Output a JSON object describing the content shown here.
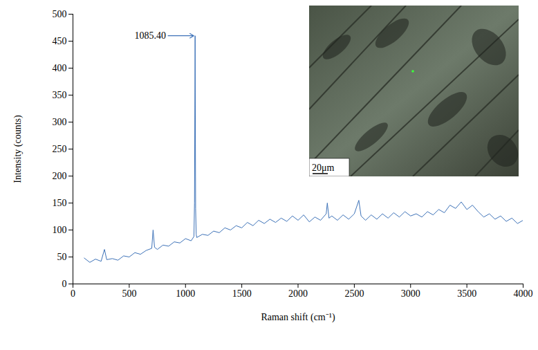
{
  "chart_data": {
    "type": "line",
    "x_label": "Raman shift (cm⁻¹)",
    "y_label": "Intensity (counts)",
    "color": "#3d72b8",
    "grid": false,
    "xlim": [
      0,
      4000
    ],
    "xticks": [
      0,
      500,
      1000,
      1500,
      2000,
      2500,
      3000,
      3500,
      4000
    ],
    "ylim": [
      0,
      500
    ],
    "yticks": [
      0,
      50,
      100,
      150,
      200,
      250,
      300,
      350,
      400,
      450,
      500
    ],
    "x": [
      100,
      150,
      200,
      250,
      280,
      300,
      350,
      400,
      450,
      500,
      550,
      600,
      650,
      700,
      712,
      725,
      750,
      800,
      850,
      900,
      950,
      1000,
      1050,
      1075,
      1080,
      1085.4,
      1090,
      1095,
      1100,
      1150,
      1200,
      1250,
      1300,
      1350,
      1400,
      1450,
      1500,
      1550,
      1600,
      1650,
      1700,
      1750,
      1800,
      1850,
      1900,
      1950,
      2000,
      2050,
      2100,
      2150,
      2200,
      2250,
      2260,
      2275,
      2300,
      2350,
      2400,
      2450,
      2500,
      2540,
      2560,
      2600,
      2650,
      2700,
      2750,
      2800,
      2850,
      2900,
      2950,
      3000,
      3050,
      3100,
      3150,
      3200,
      3250,
      3300,
      3350,
      3400,
      3450,
      3500,
      3550,
      3600,
      3650,
      3700,
      3750,
      3800,
      3850,
      3900,
      3950,
      4000
    ],
    "values": [
      48,
      40,
      46,
      42,
      64,
      45,
      47,
      44,
      52,
      50,
      58,
      55,
      62,
      66,
      100,
      68,
      64,
      72,
      70,
      78,
      76,
      84,
      80,
      88,
      150,
      460,
      140,
      92,
      86,
      92,
      90,
      98,
      95,
      104,
      100,
      108,
      104,
      114,
      108,
      118,
      112,
      120,
      114,
      122,
      116,
      126,
      118,
      128,
      115,
      124,
      118,
      130,
      150,
      122,
      126,
      118,
      128,
      120,
      130,
      155,
      126,
      118,
      128,
      120,
      130,
      122,
      132,
      124,
      134,
      126,
      130,
      124,
      134,
      128,
      138,
      132,
      146,
      140,
      152,
      138,
      146,
      134,
      124,
      130,
      120,
      126,
      116,
      122,
      112,
      118
    ],
    "annotations": [
      {
        "text": "1085.40",
        "x": 1085.4,
        "y": 460
      }
    ],
    "inset": {
      "scale_bar_label": "20μm"
    }
  }
}
